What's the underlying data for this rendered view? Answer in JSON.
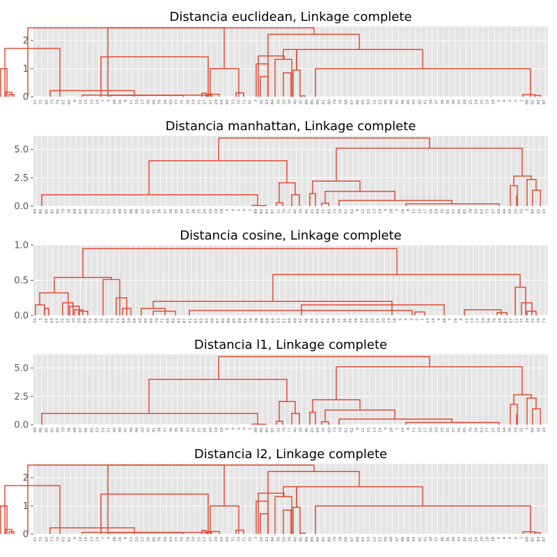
{
  "figure": {
    "background": "#ffffff",
    "plot_background": "#e5e5e5",
    "grid_color": "#ffffff",
    "line_color": "#e24a33"
  },
  "chart_data": [
    {
      "type": "dendrogram",
      "title": "Distancia euclidean, Linkage complete",
      "ylim": [
        0,
        2.5
      ],
      "yticks": [
        0,
        1,
        2
      ],
      "ytick_labels": [
        "0",
        "1",
        "2"
      ],
      "grid": true,
      "leaves": [
        21,
        72,
        60,
        73,
        74,
        61,
        62,
        6,
        12,
        15,
        13,
        14,
        7,
        9,
        28,
        16,
        8,
        11,
        10,
        17,
        56,
        66,
        76,
        54,
        63,
        77,
        75,
        58,
        59,
        55,
        57,
        27,
        29,
        64,
        69,
        31,
        70,
        71,
        32,
        3,
        22,
        23,
        84,
        30,
        50,
        39,
        40,
        45,
        89,
        85,
        86,
        81,
        80,
        79,
        78,
        68,
        67,
        66,
        65,
        53,
        52,
        51,
        49,
        48,
        47,
        46,
        44,
        43,
        42,
        41,
        38,
        37,
        36,
        35,
        34,
        33,
        26,
        25,
        24,
        20,
        19,
        18,
        5,
        4,
        2,
        0,
        1,
        88,
        82,
        83,
        87
      ],
      "merges": [
        [
          1.0,
          1,
          10,
          0,
          2
        ],
        [
          0.16,
          8,
          17,
          1,
          0
        ],
        [
          0.08,
          13,
          20,
          0,
          0
        ],
        [
          1.72,
          7,
          86,
          1,
          1
        ],
        [
          0.22,
          72,
          193,
          0,
          1
        ],
        [
          0.06,
          118,
          304,
          0,
          1
        ],
        [
          0.05,
          158,
          263,
          0,
          0
        ],
        [
          1.42,
          145,
          299,
          1,
          1
        ],
        [
          0.13,
          290,
          296,
          0,
          0
        ],
        [
          0.09,
          298,
          315,
          0,
          0
        ],
        [
          1.0,
          302,
          343,
          1,
          1
        ],
        [
          2.45,
          40,
          322,
          1,
          1
        ],
        [
          0.14,
          339,
          350,
          0,
          0
        ],
        [
          1.17,
          368,
          385,
          0,
          0
        ],
        [
          0.72,
          374,
          385,
          0,
          0
        ],
        [
          1.45,
          371,
          408,
          1,
          1
        ],
        [
          1.33,
          395,
          419,
          1,
          1
        ],
        [
          0.85,
          407,
          418,
          0,
          0
        ],
        [
          0.95,
          421,
          431,
          0,
          0
        ],
        [
          1.68,
          407,
          426,
          1,
          1
        ],
        [
          0.03,
          432,
          438,
          0,
          0
        ],
        [
          1.0,
          453,
          762,
          0,
          1
        ],
        [
          0.08,
          751,
          768,
          0,
          0
        ],
        [
          0.05,
          768,
          776,
          0,
          0
        ],
        [
          1.68,
          426,
          607,
          1,
          1
        ],
        [
          2.22,
          385,
          516,
          1,
          1
        ],
        [
          2.45,
          155,
          451,
          1,
          1
        ]
      ]
    },
    {
      "type": "dendrogram",
      "title": "Distancia manhattan, Linkage complete",
      "ylim": [
        0,
        6.2
      ],
      "yticks": [
        0,
        2.5,
        5
      ],
      "ytick_labels": [
        "0.0",
        "2.5",
        "5.0"
      ],
      "grid": true,
      "leaves": [
        89,
        86,
        85,
        81,
        80,
        79,
        78,
        68,
        67,
        66,
        65,
        53,
        52,
        51,
        49,
        48,
        47,
        46,
        44,
        43,
        42,
        41,
        38,
        37,
        36,
        35,
        34,
        33,
        26,
        25,
        24,
        20,
        19,
        18,
        5,
        4,
        2,
        0,
        1,
        88,
        82,
        83,
        87,
        31,
        70,
        71,
        40,
        39,
        45,
        21,
        69,
        72,
        60,
        73,
        74,
        61,
        62,
        6,
        12,
        15,
        13,
        14,
        9,
        28,
        7,
        16,
        8,
        11,
        10,
        17,
        58,
        59,
        75,
        55,
        57,
        56,
        65,
        76,
        54,
        63,
        77,
        27,
        29,
        64,
        30,
        50,
        32,
        3,
        84,
        22,
        23
      ],
      "merges": [
        [
          1.0,
          60,
          370,
          0,
          0
        ],
        [
          0.05,
          362,
          372,
          0,
          0
        ],
        [
          0.04,
          372,
          382,
          0,
          0
        ],
        [
          0.3,
          397,
          406,
          0,
          0
        ],
        [
          2.05,
          401,
          424,
          1,
          1
        ],
        [
          1.0,
          419,
          430,
          0,
          0
        ],
        [
          4.0,
          214,
          412,
          1,
          1
        ],
        [
          1.1,
          445,
          453,
          0,
          0
        ],
        [
          0.25,
          462,
          472,
          0,
          0
        ],
        [
          1.3,
          467,
          567,
          1,
          1
        ],
        [
          0.5,
          487,
          649,
          0,
          1
        ],
        [
          0.2,
          583,
          717,
          0,
          1
        ],
        [
          2.2,
          449,
          517,
          1,
          1
        ],
        [
          1.8,
          733,
          743,
          0,
          0
        ],
        [
          0.9,
          742,
          743,
          0,
          1
        ],
        [
          2.35,
          757,
          770,
          1,
          1
        ],
        [
          1.4,
          765,
          776,
          0,
          0
        ],
        [
          2.65,
          738,
          763,
          1,
          1
        ],
        [
          5.1,
          483,
          750,
          1,
          1
        ],
        [
          6.0,
          314,
          617,
          1,
          1
        ]
      ]
    },
    {
      "type": "dendrogram",
      "title": "Distancia cosine, Linkage complete",
      "ylim": [
        0,
        1.0
      ],
      "yticks": [
        0,
        0.5,
        1.0
      ],
      "ytick_labels": [
        "0.0",
        "0.5",
        "1.0"
      ],
      "grid": true,
      "leaves": [
        32,
        3,
        22,
        23,
        57,
        75,
        55,
        30,
        50,
        84,
        74,
        58,
        72,
        60,
        73,
        21,
        84,
        29,
        64,
        40,
        45,
        69,
        70,
        71,
        68,
        82,
        83,
        87,
        61,
        62,
        63,
        65,
        66,
        67,
        80,
        86,
        85,
        89,
        81,
        79,
        78,
        88,
        68,
        69,
        53,
        51,
        49,
        48,
        47,
        46,
        44,
        43,
        42,
        41,
        38,
        37,
        36,
        35,
        34,
        33,
        26,
        25,
        24,
        20,
        19,
        18,
        5,
        4,
        2,
        0,
        1,
        13,
        14,
        9,
        28,
        7,
        16,
        8,
        11,
        10,
        17,
        59,
        56,
        76,
        54,
        63,
        27,
        12,
        77,
        39,
        31,
        70,
        71
      ],
      "merges": [
        [
          0.15,
          51,
          64,
          0,
          0
        ],
        [
          0.1,
          64,
          70,
          0,
          0
        ],
        [
          0.32,
          57,
          98,
          1,
          0
        ],
        [
          0.18,
          90,
          105,
          0,
          0
        ],
        [
          0.13,
          100,
          114,
          0,
          0
        ],
        [
          0.08,
          107,
          119,
          0,
          0
        ],
        [
          0.06,
          113,
          126,
          0,
          0
        ],
        [
          0.54,
          78,
          160,
          1,
          1
        ],
        [
          0.51,
          148,
          172,
          0,
          0
        ],
        [
          0.25,
          167,
          182,
          0,
          0
        ],
        [
          0.1,
          176,
          188,
          0,
          0
        ],
        [
          0.95,
          119,
          570,
          1,
          1
        ],
        [
          0.1,
          203,
          237,
          0,
          0
        ],
        [
          0.06,
          220,
          252,
          0,
          0
        ],
        [
          0.2,
          220,
          563,
          1,
          0
        ],
        [
          0.07,
          272,
          592,
          0,
          0
        ],
        [
          0.15,
          433,
          638,
          0,
          0
        ],
        [
          0.05,
          596,
          610,
          0,
          0
        ],
        [
          0.08,
          667,
          720,
          0,
          0
        ],
        [
          0.04,
          714,
          728,
          0,
          0
        ],
        [
          0.58,
          392,
          747,
          1,
          1
        ],
        [
          0.4,
          740,
          755,
          0,
          0
        ],
        [
          0.18,
          749,
          764,
          0,
          0
        ],
        [
          0.06,
          757,
          770,
          0,
          0
        ]
      ]
    },
    {
      "type": "dendrogram",
      "title": "Distancia l1, Linkage complete",
      "ylim": [
        0,
        6.2
      ],
      "yticks": [
        0,
        2.5,
        5
      ],
      "ytick_labels": [
        "0.0",
        "2.5",
        "5.0"
      ],
      "grid": true,
      "leaves": [
        89,
        86,
        85,
        81,
        80,
        79,
        78,
        68,
        67,
        66,
        65,
        53,
        52,
        51,
        49,
        48,
        47,
        46,
        44,
        43,
        42,
        41,
        38,
        37,
        36,
        35,
        34,
        33,
        26,
        25,
        24,
        20,
        19,
        18,
        5,
        4,
        2,
        0,
        1,
        88,
        82,
        83,
        87,
        31,
        70,
        71,
        40,
        39,
        45,
        21,
        69,
        72,
        60,
        73,
        74,
        61,
        62,
        6,
        12,
        15,
        13,
        14,
        9,
        28,
        7,
        16,
        8,
        11,
        10,
        17,
        58,
        59,
        75,
        55,
        57,
        56,
        65,
        76,
        54,
        63,
        77,
        27,
        29,
        64,
        30,
        50,
        32,
        3,
        84,
        22,
        23
      ],
      "merges": [
        [
          1.0,
          60,
          370,
          0,
          0
        ],
        [
          0.05,
          362,
          372,
          0,
          0
        ],
        [
          0.04,
          372,
          382,
          0,
          0
        ],
        [
          0.3,
          397,
          406,
          0,
          0
        ],
        [
          2.05,
          401,
          424,
          1,
          1
        ],
        [
          1.0,
          419,
          430,
          0,
          0
        ],
        [
          4.0,
          214,
          412,
          1,
          1
        ],
        [
          1.1,
          445,
          453,
          0,
          0
        ],
        [
          0.25,
          462,
          472,
          0,
          0
        ],
        [
          1.3,
          467,
          567,
          1,
          1
        ],
        [
          0.5,
          487,
          649,
          0,
          1
        ],
        [
          0.2,
          583,
          717,
          0,
          1
        ],
        [
          2.2,
          449,
          517,
          1,
          1
        ],
        [
          1.8,
          733,
          743,
          0,
          0
        ],
        [
          0.9,
          742,
          743,
          0,
          1
        ],
        [
          2.35,
          757,
          770,
          1,
          1
        ],
        [
          1.4,
          765,
          776,
          0,
          0
        ],
        [
          2.65,
          738,
          763,
          1,
          1
        ],
        [
          5.1,
          483,
          750,
          1,
          1
        ],
        [
          6.0,
          314,
          617,
          1,
          1
        ]
      ]
    },
    {
      "type": "dendrogram",
      "title": "Distancia l2, Linkage complete",
      "ylim": [
        0,
        2.5
      ],
      "yticks": [
        0,
        1,
        2
      ],
      "ytick_labels": [
        "0",
        "1",
        "2"
      ],
      "grid": true,
      "leaves": [
        21,
        72,
        60,
        73,
        74,
        61,
        62,
        6,
        12,
        15,
        13,
        14,
        7,
        9,
        28,
        16,
        8,
        11,
        10,
        17,
        56,
        66,
        76,
        54,
        63,
        77,
        75,
        58,
        59,
        55,
        57,
        27,
        29,
        64,
        69,
        31,
        70,
        71,
        32,
        3,
        22,
        23,
        84,
        30,
        50,
        39,
        40,
        45,
        89,
        85,
        86,
        81,
        80,
        79,
        78,
        68,
        67,
        66,
        65,
        53,
        52,
        51,
        49,
        48,
        47,
        46,
        44,
        43,
        42,
        41,
        38,
        37,
        36,
        35,
        34,
        33,
        26,
        25,
        24,
        20,
        19,
        18,
        5,
        4,
        2,
        0,
        1,
        88,
        82,
        83,
        87
      ],
      "merges": [
        [
          1.0,
          1,
          10,
          0,
          2
        ],
        [
          0.16,
          8,
          17,
          1,
          0
        ],
        [
          0.08,
          13,
          20,
          0,
          0
        ],
        [
          1.72,
          7,
          86,
          1,
          1
        ],
        [
          0.22,
          72,
          193,
          0,
          1
        ],
        [
          0.06,
          118,
          304,
          0,
          1
        ],
        [
          0.05,
          158,
          263,
          0,
          0
        ],
        [
          1.42,
          145,
          299,
          1,
          1
        ],
        [
          0.13,
          290,
          296,
          0,
          0
        ],
        [
          0.09,
          298,
          315,
          0,
          0
        ],
        [
          1.0,
          302,
          343,
          1,
          1
        ],
        [
          2.45,
          40,
          322,
          1,
          1
        ],
        [
          0.14,
          339,
          350,
          0,
          0
        ],
        [
          1.17,
          368,
          385,
          0,
          0
        ],
        [
          0.72,
          374,
          385,
          0,
          0
        ],
        [
          1.45,
          371,
          408,
          1,
          1
        ],
        [
          1.33,
          395,
          419,
          1,
          1
        ],
        [
          0.85,
          407,
          418,
          0,
          0
        ],
        [
          0.95,
          421,
          431,
          0,
          0
        ],
        [
          1.68,
          407,
          426,
          1,
          1
        ],
        [
          0.03,
          432,
          438,
          0,
          0
        ],
        [
          1.0,
          453,
          762,
          0,
          1
        ],
        [
          0.08,
          751,
          768,
          0,
          0
        ],
        [
          0.05,
          768,
          776,
          0,
          0
        ],
        [
          1.68,
          426,
          607,
          1,
          1
        ],
        [
          2.22,
          385,
          516,
          1,
          1
        ],
        [
          2.45,
          155,
          451,
          1,
          1
        ]
      ]
    }
  ]
}
